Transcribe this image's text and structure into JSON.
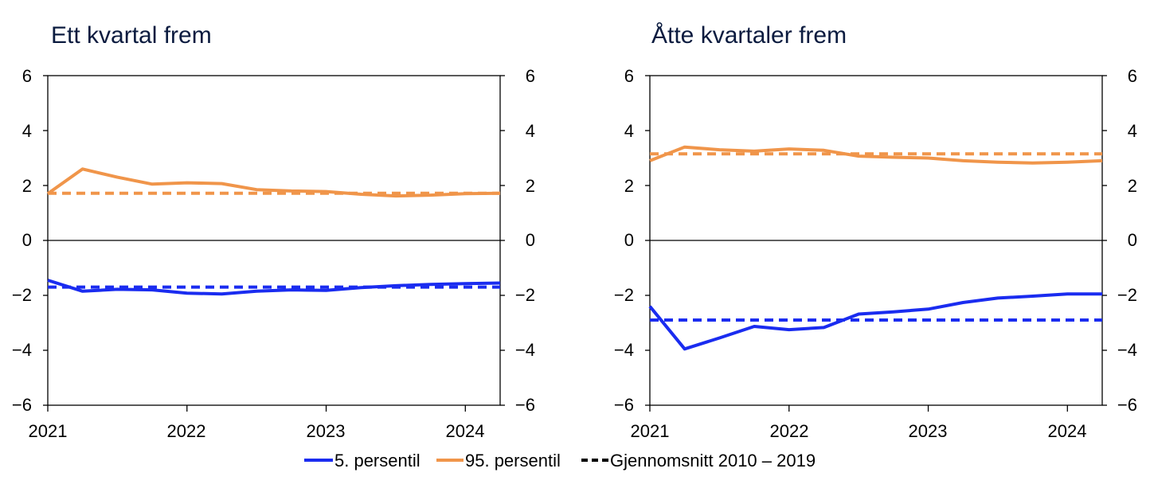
{
  "colors": {
    "p5": "#1a2cf0",
    "p95": "#f0954a",
    "mean_legend": "#000000",
    "zero_line": "#000000",
    "title": "#0b1b3f"
  },
  "legend": {
    "items": [
      {
        "key": "p5",
        "label": "5. persentil",
        "color": "#1a2cf0",
        "style": "solid"
      },
      {
        "key": "p95",
        "label": "95. persentil",
        "color": "#f0954a",
        "style": "solid"
      },
      {
        "key": "mean",
        "label": "Gjennomsnitt 2010 – 2019",
        "color": "#000000",
        "style": "dashed"
      }
    ]
  },
  "chart_data": [
    {
      "type": "line",
      "title": "Ett kvartal frem",
      "x_ticks": [
        "2021",
        "2022",
        "2023",
        "2024"
      ],
      "xlim": [
        "2021-01",
        "2024-04"
      ],
      "ylim": [
        -6,
        6
      ],
      "y_ticks": [
        "6",
        "4",
        "2",
        "0",
        "−2",
        "−4",
        "−6"
      ],
      "y_tick_values": [
        6,
        4,
        2,
        0,
        -2,
        -4,
        -6
      ],
      "y_axis_both_sides": true,
      "x": [
        "2021-01",
        "2021-04",
        "2021-07",
        "2021-10",
        "2022-01",
        "2022-04",
        "2022-07",
        "2022-10",
        "2023-01",
        "2023-04",
        "2023-07",
        "2023-10",
        "2024-01",
        "2024-04"
      ],
      "series": [
        {
          "name": "5. persentil",
          "key": "p5",
          "style": "solid",
          "values": [
            -1.45,
            -1.85,
            -1.78,
            -1.8,
            -1.92,
            -1.95,
            -1.85,
            -1.8,
            -1.82,
            -1.72,
            -1.65,
            -1.6,
            -1.57,
            -1.55
          ]
        },
        {
          "name": "95. persentil",
          "key": "p95",
          "style": "solid",
          "values": [
            1.7,
            2.6,
            2.3,
            2.05,
            2.1,
            2.07,
            1.85,
            1.8,
            1.78,
            1.68,
            1.62,
            1.65,
            1.7,
            1.72
          ]
        },
        {
          "name": "Gjennomsnitt 2010 – 2019",
          "key": "p5",
          "style": "dashed",
          "values": [
            -1.7,
            -1.7,
            -1.7,
            -1.7,
            -1.7,
            -1.7,
            -1.7,
            -1.7,
            -1.7,
            -1.7,
            -1.7,
            -1.7,
            -1.7,
            -1.7
          ]
        },
        {
          "name": "Gjennomsnitt 2010 – 2019",
          "key": "p95",
          "style": "dashed",
          "values": [
            1.72,
            1.72,
            1.72,
            1.72,
            1.72,
            1.72,
            1.72,
            1.72,
            1.72,
            1.72,
            1.72,
            1.72,
            1.72,
            1.72
          ]
        }
      ]
    },
    {
      "type": "line",
      "title": "Åtte kvartaler frem",
      "x_ticks": [
        "2021",
        "2022",
        "2023",
        "2024"
      ],
      "xlim": [
        "2021-01",
        "2024-04"
      ],
      "ylim": [
        -6,
        6
      ],
      "y_ticks": [
        "6",
        "4",
        "2",
        "0",
        "−2",
        "−4",
        "−6"
      ],
      "y_tick_values": [
        6,
        4,
        2,
        0,
        -2,
        -4,
        -6
      ],
      "y_axis_both_sides": true,
      "x": [
        "2021-01",
        "2021-04",
        "2021-07",
        "2021-10",
        "2022-01",
        "2022-04",
        "2022-07",
        "2022-10",
        "2023-01",
        "2023-04",
        "2023-07",
        "2023-10",
        "2024-01",
        "2024-04"
      ],
      "series": [
        {
          "name": "5. persentil",
          "key": "p5",
          "style": "solid",
          "values": [
            -2.4,
            -3.95,
            -3.55,
            -3.13,
            -3.25,
            -3.17,
            -2.68,
            -2.6,
            -2.5,
            -2.26,
            -2.1,
            -2.03,
            -1.95,
            -1.95
          ]
        },
        {
          "name": "95. persentil",
          "key": "p95",
          "style": "solid",
          "values": [
            2.9,
            3.4,
            3.3,
            3.25,
            3.33,
            3.28,
            3.07,
            3.03,
            3.0,
            2.9,
            2.85,
            2.82,
            2.85,
            2.9
          ]
        },
        {
          "name": "Gjennomsnitt 2010 – 2019",
          "key": "p5",
          "style": "dashed",
          "values": [
            -2.9,
            -2.9,
            -2.9,
            -2.9,
            -2.9,
            -2.9,
            -2.9,
            -2.9,
            -2.9,
            -2.9,
            -2.9,
            -2.9,
            -2.9,
            -2.9
          ]
        },
        {
          "name": "Gjennomsnitt 2010 – 2019",
          "key": "p95",
          "style": "dashed",
          "values": [
            3.15,
            3.15,
            3.15,
            3.15,
            3.15,
            3.15,
            3.15,
            3.15,
            3.15,
            3.15,
            3.15,
            3.15,
            3.15,
            3.15
          ]
        }
      ]
    }
  ]
}
